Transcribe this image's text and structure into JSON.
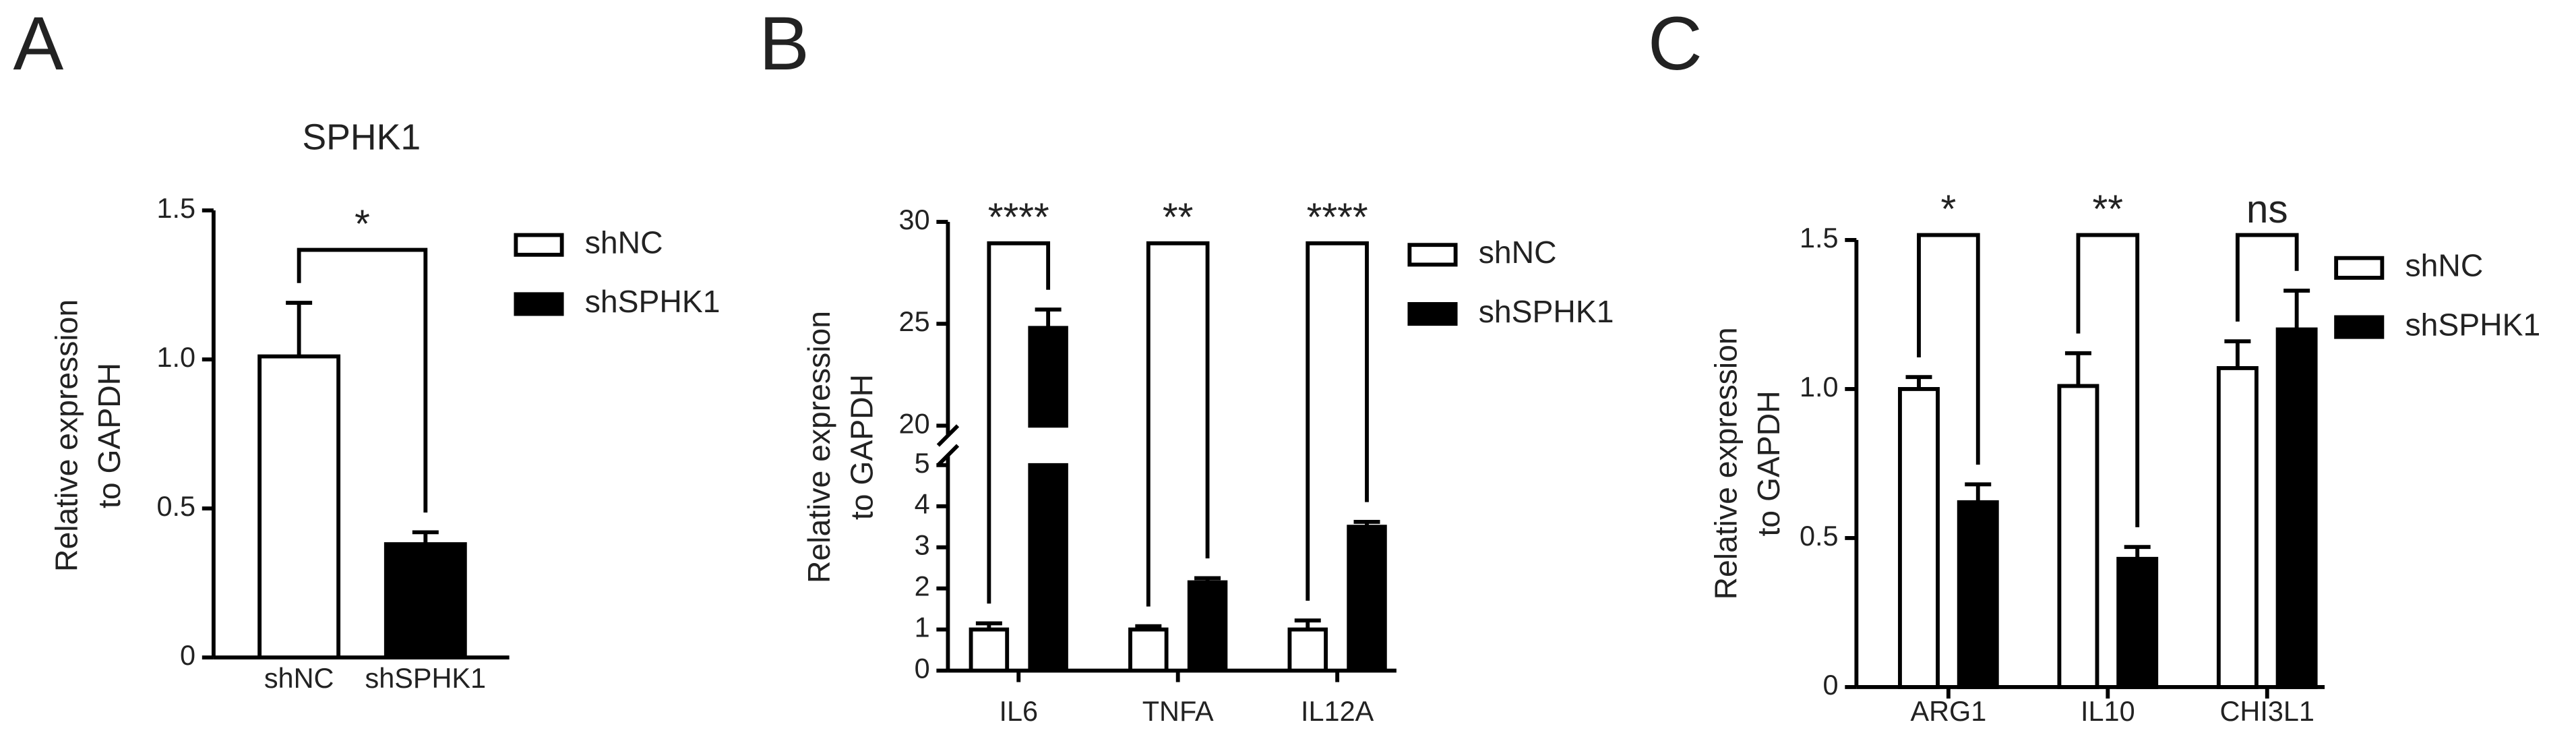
{
  "chart_data": [
    {
      "type": "bar",
      "panel": "A",
      "title": "SPHK1",
      "ylabel": [
        "Relative expression",
        "to GAPDH"
      ],
      "categories": [
        "shNC",
        "shSPHK1"
      ],
      "series": [
        {
          "name": "shNC",
          "color": "#ffffff",
          "values": [
            1.01,
            null
          ],
          "errors": [
            0.18,
            null
          ]
        },
        {
          "name": "shSPHK1",
          "color": "#000000",
          "values": [
            null,
            0.38
          ],
          "errors": [
            null,
            0.04
          ]
        }
      ],
      "ylim": [
        0,
        1.5
      ],
      "yticks": [
        0,
        0.5,
        {
          "value": 1,
          "label": "1.0"
        },
        1.5
      ],
      "significance": [
        "*"
      ],
      "legend": "right"
    },
    {
      "type": "bar",
      "panel": "B",
      "ylabel": [
        "Relative expression",
        "to GAPDH"
      ],
      "categories": [
        "IL6",
        "TNFA",
        "IL12A"
      ],
      "series": [
        {
          "name": "shNC",
          "color": "#ffffff",
          "values": [
            1.0,
            1.0,
            1.0
          ],
          "errors": [
            0.15,
            0.08,
            0.22
          ]
        },
        {
          "name": "shSPHK1",
          "color": "#000000",
          "values": [
            24.8,
            2.15,
            3.5
          ],
          "errors": [
            0.9,
            0.1,
            0.12
          ]
        }
      ],
      "ylim": [
        0,
        30
      ],
      "ybreak": [
        5,
        20
      ],
      "yticks": [
        0,
        1,
        2,
        3,
        4,
        5,
        20,
        25,
        30
      ],
      "significance": [
        "****",
        "**",
        "****"
      ],
      "legend": "right"
    },
    {
      "type": "bar",
      "panel": "C",
      "ylabel": [
        "Relative expression",
        "to GAPDH"
      ],
      "categories": [
        "ARG1",
        "IL10",
        "CHI3L1"
      ],
      "series": [
        {
          "name": "shNC",
          "color": "#ffffff",
          "values": [
            1.0,
            1.01,
            1.07
          ],
          "errors": [
            0.04,
            0.11,
            0.09
          ]
        },
        {
          "name": "shSPHK1",
          "color": "#000000",
          "values": [
            0.62,
            0.43,
            1.2
          ],
          "errors": [
            0.06,
            0.04,
            0.13
          ]
        }
      ],
      "ylim": [
        0,
        1.5
      ],
      "yticks": [
        0,
        0.5,
        {
          "value": 1,
          "label": "1.0"
        },
        1.5
      ],
      "significance": [
        "*",
        "**",
        "ns"
      ],
      "legend": "right"
    }
  ]
}
